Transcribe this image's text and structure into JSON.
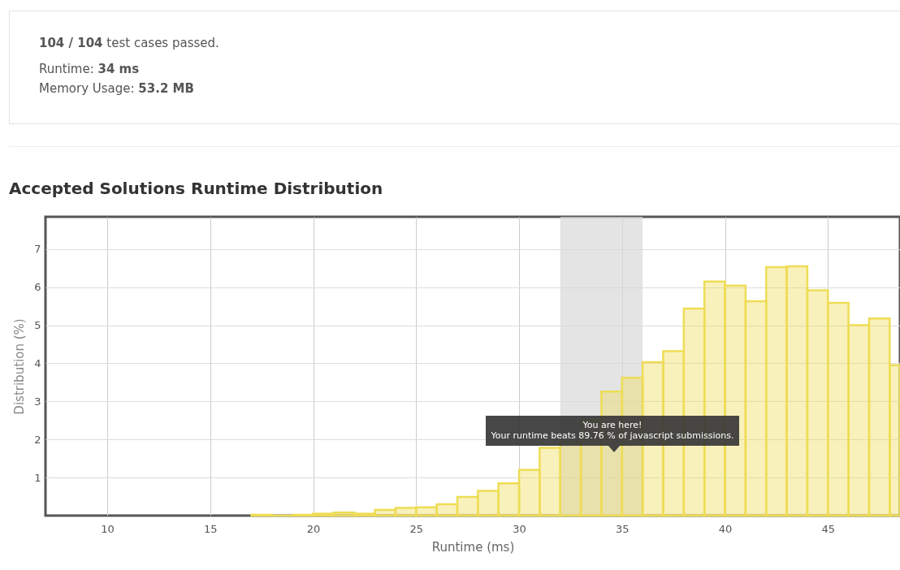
{
  "chart_data": {
    "type": "histogram",
    "title": "Accepted Solutions Runtime Distribution",
    "xlabel": "Runtime (ms)",
    "ylabel": "Distribution (%)",
    "bins": [
      17,
      18,
      19,
      20,
      21,
      22,
      23,
      24,
      25,
      26,
      27,
      28,
      29,
      30,
      31,
      32,
      33,
      34,
      35,
      36,
      37,
      38,
      39,
      40,
      41,
      42,
      43,
      44,
      45,
      46,
      47,
      48,
      48.5
    ],
    "values": [
      0.02,
      0,
      0.02,
      0.05,
      0.08,
      0.05,
      0.15,
      0.2,
      0.22,
      0.3,
      0.49,
      0.65,
      0.85,
      1.2,
      1.78,
      1.94,
      2.5,
      3.26,
      3.62,
      4.03,
      4.32,
      5.44,
      6.15,
      6.04,
      5.63,
      6.53,
      6.55,
      5.92,
      5.59,
      5.0,
      5.18,
      3.95
    ],
    "color": "#eedd55",
    "xlim": [
      7,
      48.5
    ],
    "xticks": [
      10,
      15,
      20,
      25,
      30,
      35,
      40,
      45
    ],
    "ylim": [
      0,
      7.85
    ],
    "yticks": [
      1,
      2,
      3,
      4,
      5,
      6,
      7
    ],
    "grid": true,
    "bands": [
      {
        "axis": "x",
        "from": 32,
        "to": 36,
        "color": "#d9d9d9"
      }
    ],
    "annotations": [
      "104 / 104 test cases passed.",
      "Runtime: 34 ms",
      "Memory Usage: 53.2 MB",
      "You are here!",
      "Your runtime beats 89.76 % of javascript submissions."
    ]
  }
}
